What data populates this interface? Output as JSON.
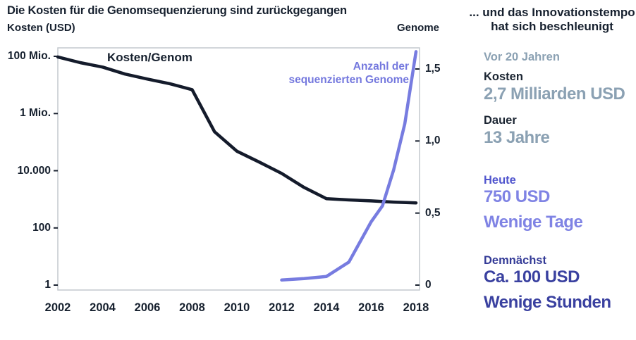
{
  "chart": {
    "title": "Die Kosten für die Genomsequenzierung sind zurückgegangen",
    "left_axis_title": "Kosten (USD)",
    "right_axis_title": "Genome",
    "inplot_label_left": "Kosten/Genom",
    "inplot_label_right_line1": "Anzahl der",
    "inplot_label_right_line2": "sequenzierten Genome"
  },
  "chart_data": {
    "type": "line",
    "title": "Die Kosten für die Genomsequenzierung sind zurückgegangen",
    "x_axis": {
      "label": "",
      "range": [
        2002,
        2018
      ],
      "ticks": [
        "2002",
        "2004",
        "2006",
        "2008",
        "2010",
        "2012",
        "2014",
        "2016",
        "2018"
      ]
    },
    "left_axis": {
      "label": "Kosten (USD)",
      "scale": "log",
      "ticks": [
        "100 Mio.",
        "1 Mio.",
        "10.000",
        "100",
        "1"
      ],
      "tick_values": [
        100000000,
        1000000,
        10000,
        100,
        1
      ]
    },
    "right_axis": {
      "label": "Genome",
      "scale": "linear",
      "ticks": [
        "1,5",
        "1,0",
        "0,5",
        "0"
      ],
      "tick_values": [
        1.5,
        1.0,
        0.5,
        0
      ]
    },
    "grid": false,
    "legend_position": "inline-annotations",
    "series": [
      {
        "name": "Kosten/Genom",
        "axis": "left",
        "color": "#141b2b",
        "points": [
          [
            2002,
            95000000
          ],
          [
            2003,
            60000000
          ],
          [
            2004,
            42000000
          ],
          [
            2005,
            24000000
          ],
          [
            2006,
            16000000
          ],
          [
            2007,
            11000000
          ],
          [
            2008,
            6800000
          ],
          [
            2009,
            230000
          ],
          [
            2010,
            48000
          ],
          [
            2011,
            20000
          ],
          [
            2012,
            8000
          ],
          [
            2013,
            2600
          ],
          [
            2014,
            1050
          ],
          [
            2015,
            950
          ],
          [
            2016,
            880
          ],
          [
            2017,
            800
          ],
          [
            2018,
            750
          ]
        ]
      },
      {
        "name": "Anzahl der sequenzierten Genome",
        "axis": "right",
        "color": "#777ce0",
        "points": [
          [
            2012,
            0.035
          ],
          [
            2013,
            0.045
          ],
          [
            2014,
            0.06
          ],
          [
            2015,
            0.16
          ],
          [
            2016,
            0.44
          ],
          [
            2016.5,
            0.55
          ],
          [
            2017,
            0.8
          ],
          [
            2017.5,
            1.12
          ],
          [
            2018,
            1.62
          ]
        ]
      }
    ]
  },
  "sidebar": {
    "heading_line1": "... und das Innovationstempo",
    "heading_line2": "hat sich beschleunigt",
    "sections": [
      {
        "label": "Vor 20 Jahren",
        "rows": [
          {
            "k": "Kosten",
            "v": "2,7 Milliarden USD"
          },
          {
            "k": "Dauer",
            "v": "13 Jahre"
          }
        ]
      },
      {
        "label": "Heute",
        "values": [
          "750 USD",
          "Wenige Tage"
        ]
      },
      {
        "label": "Demnächst",
        "values": [
          "Ca. 100 USD",
          "Wenige Stunden"
        ]
      }
    ],
    "colors": {
      "past": "#8ba1b3",
      "present": "#7f83e4",
      "present_label": "#5156ce",
      "future": "#3a41a0",
      "dark": "#1b2532"
    }
  }
}
